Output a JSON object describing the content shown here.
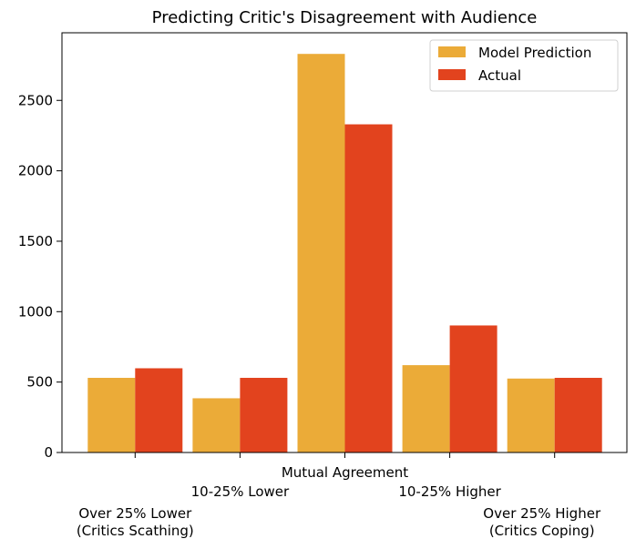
{
  "chart_data": {
    "type": "bar",
    "title": "Predicting Critic's Disagreement with Audience",
    "xlabel": "",
    "ylabel": "",
    "categories": [
      [
        "Over 25% Lower",
        "(Critics Scathing)"
      ],
      [
        "10-25% Lower"
      ],
      [
        "Mutual Agreement"
      ],
      [
        "10-25% Higher"
      ],
      [
        "Over 25% Higher",
        "(Critics Coping)"
      ]
    ],
    "series": [
      {
        "name": "Model Prediction",
        "color": "#ebab38",
        "values": [
          530,
          385,
          2830,
          620,
          525
        ]
      },
      {
        "name": "Actual",
        "color": "#e2431e",
        "values": [
          598,
          530,
          2330,
          902,
          530
        ]
      }
    ],
    "ylim": [
      0,
      2980
    ],
    "yticks": [
      0,
      500,
      1000,
      1500,
      2000,
      2500
    ],
    "grid": false,
    "legend": "top-right"
  }
}
